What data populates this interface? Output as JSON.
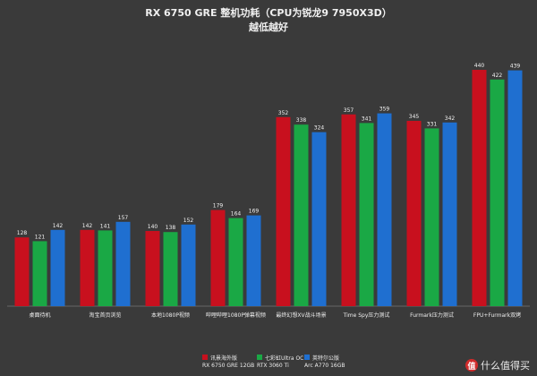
{
  "chart_data": {
    "type": "bar",
    "title": "RX 6750 GRE 整机功耗（CPU为锐龙9 7950X3D）",
    "subtitle": "越低越好",
    "categories": [
      "桌面待机",
      "淘宝首页浏览",
      "本地1080P视频",
      "哔哩哔哩1080P弹幕视频",
      "最终幻想XV战斗场景",
      "Time Spy压力测试",
      "Furmark压力测试",
      "FPU+Furmark双烤"
    ],
    "series": [
      {
        "name": "讯景海外版",
        "sub": "RX 6750 GRE 12GB",
        "color": "#c8101e",
        "values": [
          128,
          142,
          140,
          179,
          352,
          357,
          345,
          440
        ]
      },
      {
        "name": "七彩虹Ultra OC",
        "sub": "RTX 3060 Ti",
        "color": "#1aa845",
        "values": [
          121,
          141,
          138,
          164,
          338,
          341,
          331,
          422
        ]
      },
      {
        "name": "英特尔公版",
        "sub": "Arc A770 16GB",
        "color": "#1f6fd0",
        "values": [
          142,
          157,
          152,
          169,
          324,
          359,
          342,
          439
        ]
      }
    ],
    "ylim": [
      0,
      470
    ],
    "grid": false,
    "legend": "bottom-center"
  },
  "watermark": {
    "logo": "值",
    "text": "什么值得买"
  }
}
